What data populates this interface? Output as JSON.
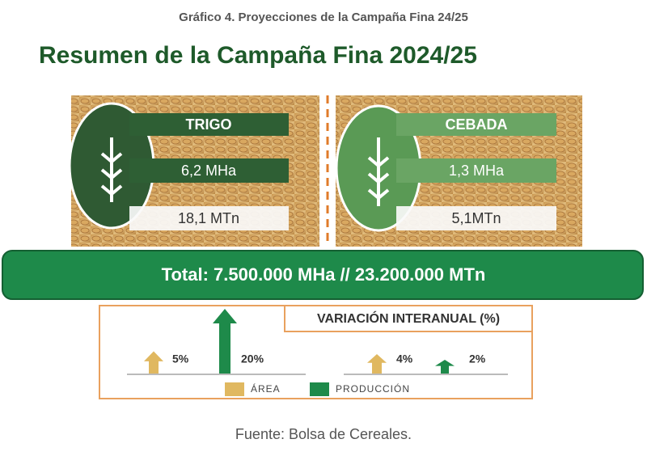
{
  "header": "Gráfico 4. Proyecciones de la Campaña Fina 24/25",
  "title": "Resumen de la Campaña Fina 2024/25",
  "crops": [
    {
      "name": "TRIGO",
      "area": "6,2 MHa",
      "production": "18,1 MTn"
    },
    {
      "name": "CEBADA",
      "area": "1,3 MHa",
      "production": "5,1MTn"
    }
  ],
  "total": "Total: 7.500.000 MHa // 23.200.000 MTn",
  "variation": {
    "title": "VARIACIÓN INTERANUAL (%)",
    "legend": [
      "ÁREA",
      "PRODUCCIÓN"
    ],
    "values": [
      5,
      20,
      4,
      2
    ],
    "value_labels": [
      "5%",
      "20%",
      "4%",
      "2%"
    ]
  },
  "source": "Fuente: Bolsa de Cereales."
}
